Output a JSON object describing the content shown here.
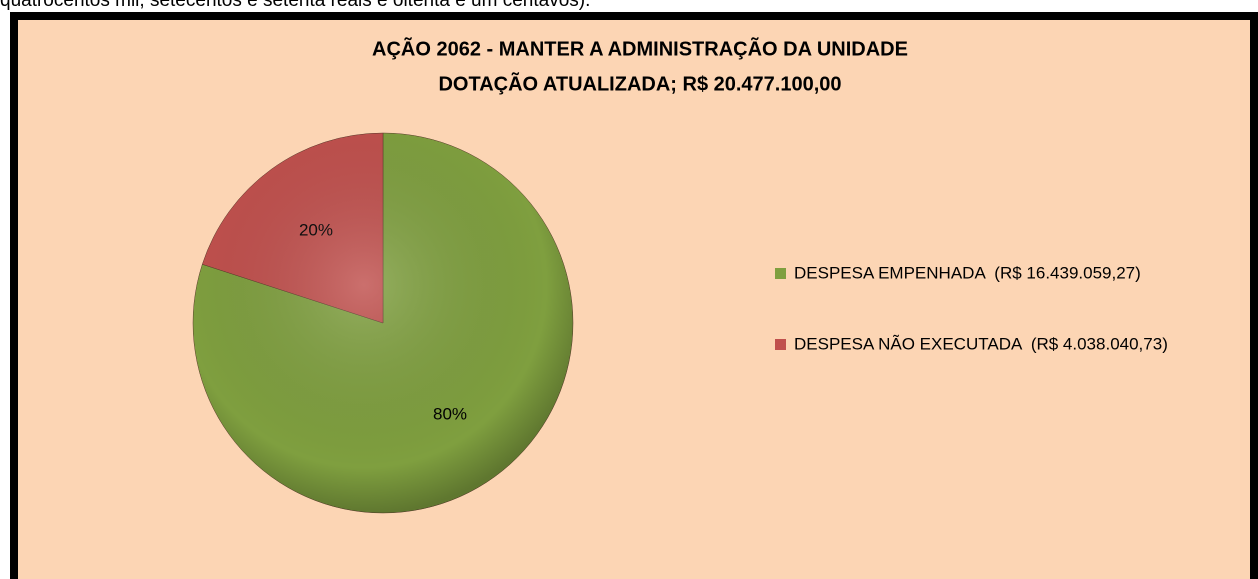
{
  "text_above": "quatrocentos mil, setecentos e setenta reais e oitenta e um centavos).",
  "chart_data": {
    "type": "pie",
    "title": [
      "AÇÃO 2062 - MANTER A ADMINISTRAÇÃO DA UNIDADE",
      "DOTAÇÃO ATUALIZADA; R$ 20.477.100,00"
    ],
    "categories": [
      "DESPESA EMPENHADA  (R$ 16.439.059,27)",
      "DESPESA NÃO EXECUTADA  (R$ 4.038.040,73)"
    ],
    "values": [
      80,
      20
    ],
    "value_labels": [
      "80%",
      "20%"
    ],
    "colors": [
      "#7f9f3f",
      "#c0504d"
    ],
    "legend": "right"
  }
}
